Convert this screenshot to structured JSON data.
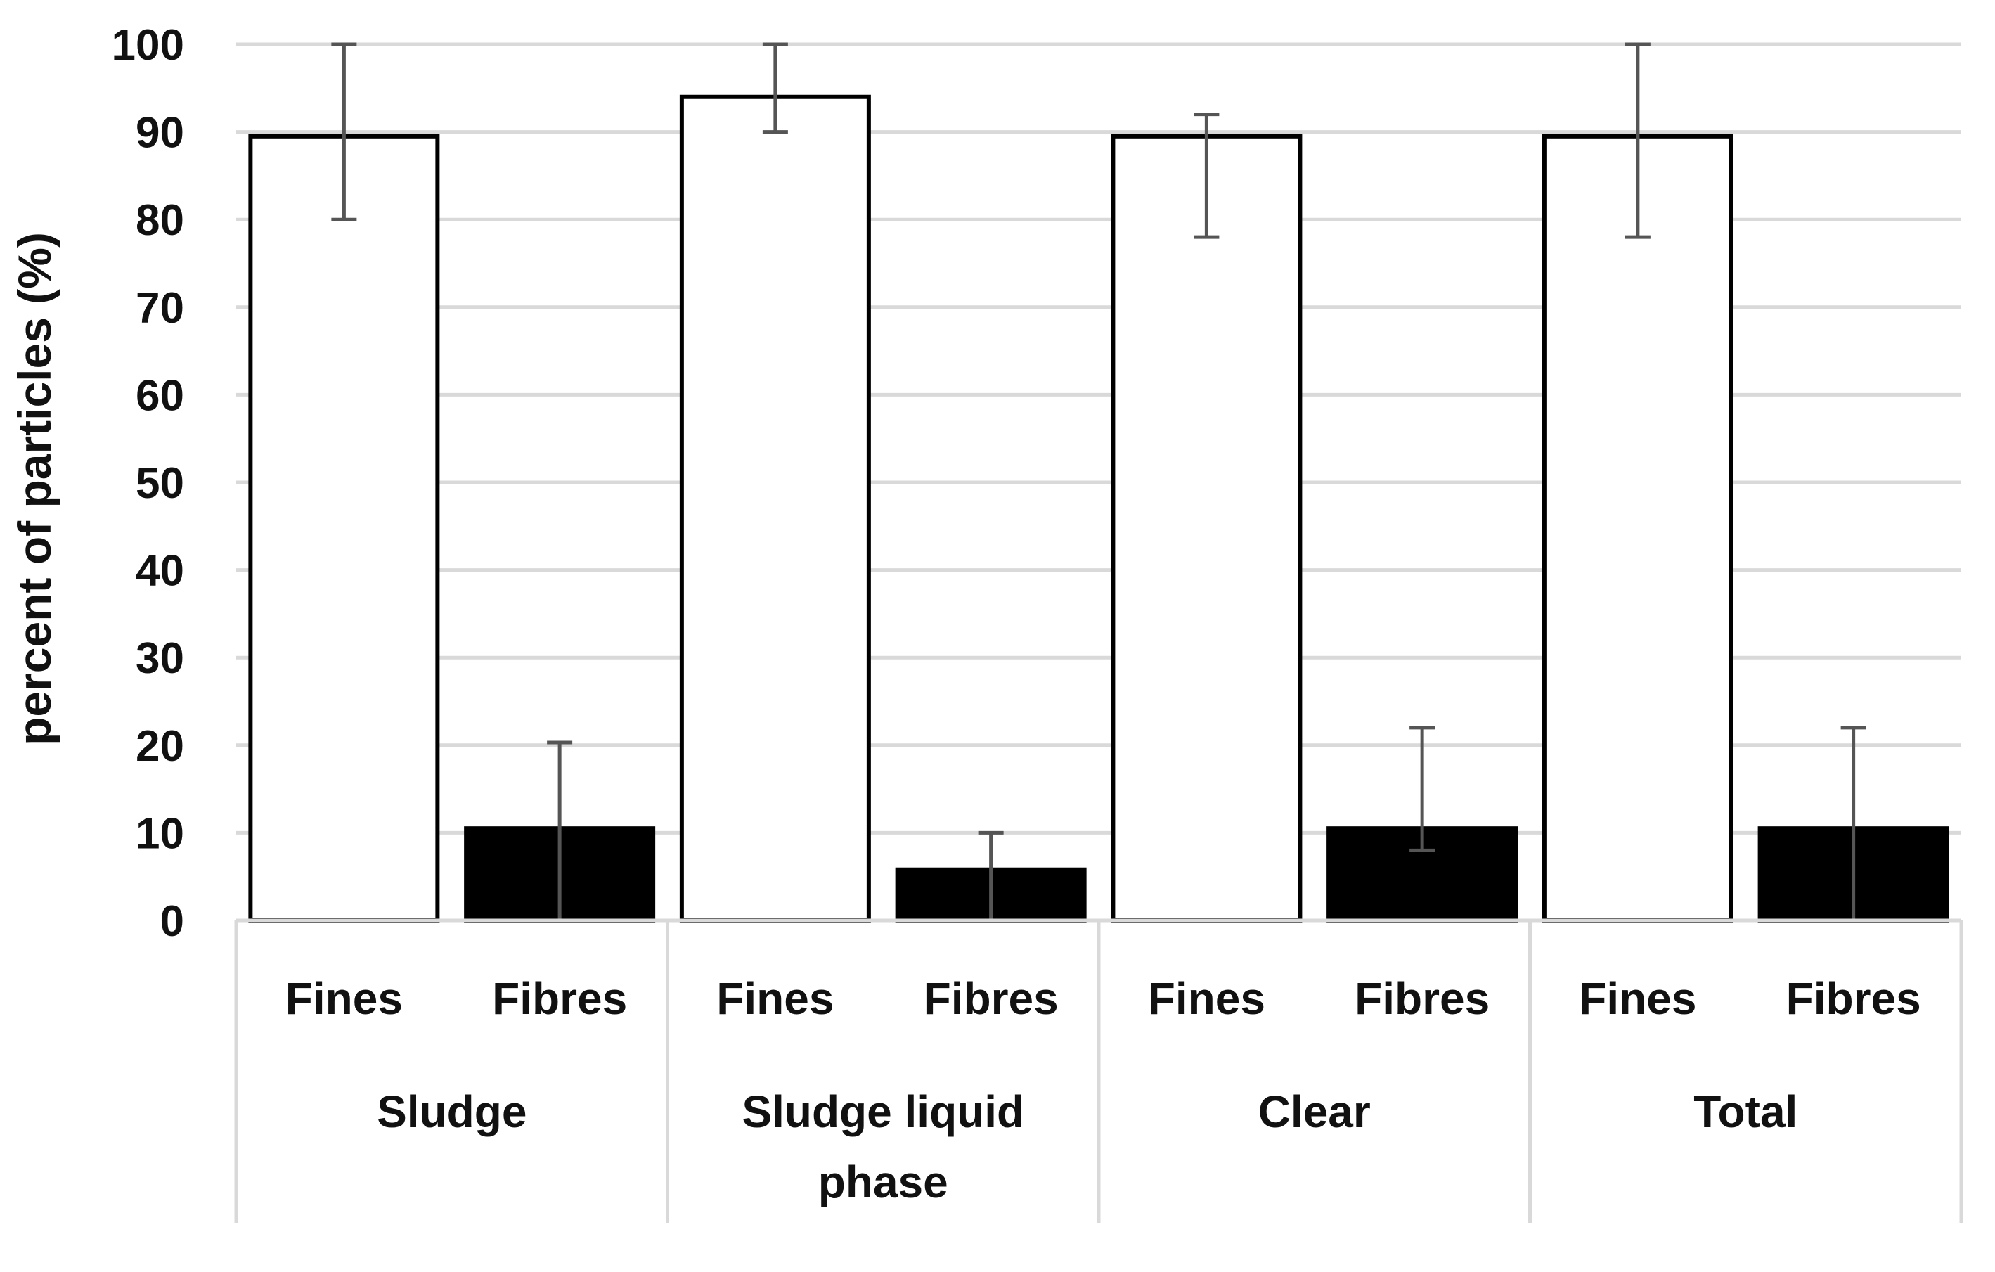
{
  "chart_data": {
    "type": "bar",
    "ylabel": "percent of particles (%)",
    "xlabel": "",
    "ylim": [
      0,
      100
    ],
    "yticks": [
      "0",
      "10",
      "20",
      "30",
      "40",
      "50",
      "60",
      "70",
      "80",
      "90",
      "100"
    ],
    "grid": true,
    "groups": [
      "Sludge",
      "Sludge liquid phase",
      "Clear",
      "Total"
    ],
    "group_label_lines": [
      [
        "Sludge"
      ],
      [
        "Sludge liquid",
        "phase"
      ],
      [
        "Clear"
      ],
      [
        "Total"
      ]
    ],
    "subcategories": [
      "Fines",
      "Fibres"
    ],
    "series": [
      {
        "name": "Fines",
        "values": [
          89.5,
          94,
          89.5,
          89.5
        ],
        "error_low": [
          80,
          90,
          78,
          78
        ],
        "error_high": [
          100,
          100,
          92,
          100
        ]
      },
      {
        "name": "Fibres",
        "values": [
          10.5,
          5.8,
          10.5,
          10.5
        ],
        "error_low": [
          0,
          0,
          8,
          0
        ],
        "error_high": [
          20.3,
          10,
          22,
          22
        ]
      }
    ],
    "colors": {
      "Fines": "#ffffff",
      "Fibres": "#000000",
      "bar_edge": "#000000",
      "error": "#555555",
      "grid": "#d9d9d9"
    }
  }
}
